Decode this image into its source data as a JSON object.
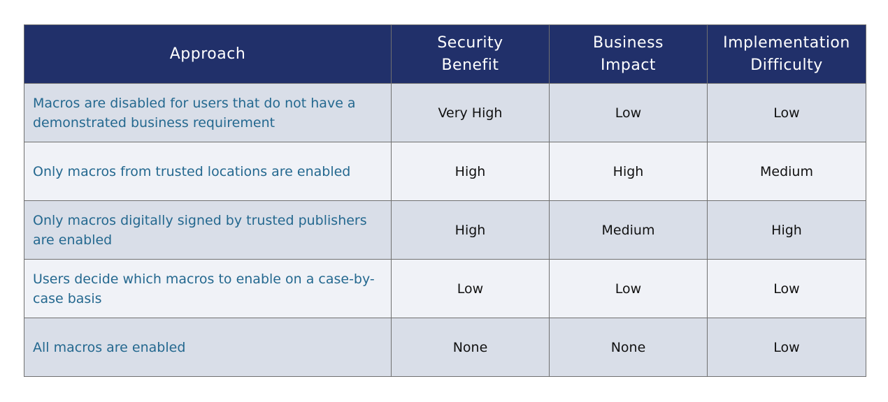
{
  "table": {
    "header": [
      "Approach",
      "Security Benefit",
      "Business Impact",
      "Implementation Difficulty"
    ],
    "rows": [
      [
        "Macros are disabled for users that do not have a demonstrated business requirement",
        "Very High",
        "Low",
        "Low"
      ],
      [
        "Only macros from trusted locations are enabled",
        "High",
        "High",
        "Medium"
      ],
      [
        "Only macros digitally signed by trusted publishers are enabled",
        "High",
        "Medium",
        "High"
      ],
      [
        "Users decide which macros to enable on a case-by-case basis",
        "Low",
        "Low",
        "Low"
      ],
      [
        "All macros are enabled",
        "None",
        "None",
        "Low"
      ]
    ]
  }
}
